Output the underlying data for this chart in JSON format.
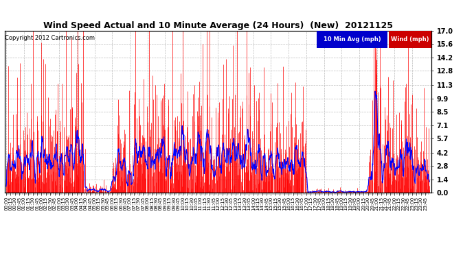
{
  "title": "Wind Speed Actual and 10 Minute Average (24 Hours)  (New)  20121125",
  "copyright": "Copyright 2012 Cartronics.com",
  "legend_label1": "10 Min Avg (mph)",
  "legend_label2": "Wind (mph)",
  "legend_color1": "#0000cc",
  "legend_color2": "#cc0000",
  "yticks": [
    0.0,
    1.4,
    2.8,
    4.2,
    5.7,
    7.1,
    8.5,
    9.9,
    11.3,
    12.8,
    14.2,
    15.6,
    17.0
  ],
  "ylim": [
    0,
    17.0
  ],
  "bg_color": "#ffffff",
  "grid_color": "#bbbbbb",
  "bar_color": "#ff0000",
  "dark_bar_color": "#444444",
  "avg_color": "#0000ff",
  "figsize": [
    6.9,
    3.75
  ],
  "dpi": 100,
  "n_points": 1440,
  "minutes_per_point": 1
}
